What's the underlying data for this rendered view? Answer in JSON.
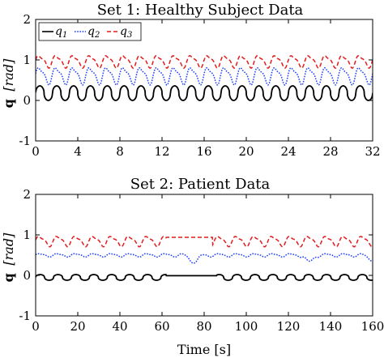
{
  "chart_data": [
    {
      "type": "line",
      "title": "Set 1: Healthy Subject Data",
      "ylabel_bold": "q",
      "ylabel_unit": "[rad]",
      "xlabel": "",
      "xlim": [
        0,
        32
      ],
      "ylim": [
        -1,
        2
      ],
      "xticks": [
        0,
        4,
        8,
        12,
        16,
        20,
        24,
        28,
        32
      ],
      "yticks": [
        -1,
        0,
        1,
        2
      ],
      "grid": false,
      "legend": {
        "placement": "top-left",
        "entries": [
          "q1",
          "q2",
          "q3"
        ]
      },
      "series": [
        {
          "name": "q1",
          "color": "#000000",
          "style": "solid",
          "model": {
            "mean": 0.18,
            "amp": 0.18,
            "period": 1.6,
            "sharp": true
          },
          "samples": [
            [
              0,
              0.35
            ],
            [
              0.8,
              0.0
            ],
            [
              1.6,
              0.35
            ],
            [
              2.4,
              0.0
            ],
            [
              3.2,
              0.35
            ],
            [
              8.8,
              -0.12
            ],
            [
              9.6,
              0.35
            ],
            [
              15.2,
              0.35
            ],
            [
              16.0,
              0.0
            ],
            [
              25.6,
              -0.12
            ],
            [
              32,
              0.0
            ]
          ]
        },
        {
          "name": "q2",
          "color": "#1f3fff",
          "style": "dotted",
          "model": {
            "mean": 0.62,
            "amp": 0.25,
            "period": 1.6,
            "sharp": false
          },
          "samples": [
            [
              0,
              0.75
            ],
            [
              0.8,
              0.95
            ],
            [
              1.6,
              0.4
            ],
            [
              4.0,
              0.9
            ],
            [
              8.0,
              0.35
            ],
            [
              12.0,
              0.85
            ],
            [
              16.0,
              0.6
            ],
            [
              20.0,
              0.9
            ],
            [
              24.0,
              0.3
            ],
            [
              28.0,
              0.55
            ],
            [
              32,
              0.9
            ]
          ]
        },
        {
          "name": "q3",
          "color": "#e41a1c",
          "style": "dashed",
          "model": {
            "mean": 0.97,
            "amp": 0.18,
            "period": 1.6,
            "sharp": false
          },
          "samples": [
            [
              0,
              1.2
            ],
            [
              0.8,
              0.85
            ],
            [
              1.6,
              1.15
            ],
            [
              4.0,
              1.1
            ],
            [
              8.0,
              0.9
            ],
            [
              12.0,
              1.15
            ],
            [
              16.0,
              0.85
            ],
            [
              20.0,
              1.2
            ],
            [
              24.0,
              0.85
            ],
            [
              28.0,
              0.85
            ],
            [
              32,
              1.2
            ]
          ]
        }
      ]
    },
    {
      "type": "line",
      "title": "Set 2: Patient Data",
      "ylabel_bold": "q",
      "ylabel_unit": "[rad]",
      "xlabel": "Time [s]",
      "xlim": [
        0,
        160
      ],
      "ylim": [
        -1,
        2
      ],
      "xticks": [
        0,
        20,
        40,
        60,
        80,
        100,
        120,
        140,
        160
      ],
      "yticks": [
        -1,
        0,
        1,
        2
      ],
      "grid": false,
      "series": [
        {
          "name": "q1",
          "color": "#000000",
          "style": "solid",
          "model": {
            "mean": -0.05,
            "amp": 0.07,
            "period": 8.5,
            "sharp": true,
            "flat": [
              62,
              86
            ]
          },
          "samples": [
            [
              0,
              -0.1
            ],
            [
              5,
              0.02
            ],
            [
              10,
              -0.12
            ],
            [
              20,
              0.02
            ],
            [
              40,
              -0.12
            ],
            [
              60,
              0.02
            ],
            [
              70,
              0.05
            ],
            [
              80,
              0.05
            ],
            [
              100,
              -0.1
            ],
            [
              140,
              0.02
            ],
            [
              160,
              0.05
            ]
          ]
        },
        {
          "name": "q2",
          "color": "#1f3fff",
          "style": "dotted",
          "model": {
            "mean": 0.5,
            "amp": 0.05,
            "period": 8.5,
            "sharp": false,
            "dips": [
              [
                75,
                0.3
              ],
              [
                130,
                0.35
              ],
              [
                160,
                0.35
              ]
            ]
          },
          "samples": [
            [
              0,
              0.5
            ],
            [
              20,
              0.58
            ],
            [
              40,
              0.45
            ],
            [
              60,
              0.55
            ],
            [
              75,
              0.3
            ],
            [
              100,
              0.5
            ],
            [
              130,
              0.35
            ],
            [
              160,
              0.35
            ]
          ]
        },
        {
          "name": "q3",
          "color": "#e41a1c",
          "style": "dashed",
          "model": {
            "mean": 0.85,
            "amp": 0.15,
            "period": 8.5,
            "sharp": false,
            "flat": [
              62,
              84
            ]
          },
          "samples": [
            [
              0,
              1.0
            ],
            [
              5,
              0.75
            ],
            [
              20,
              1.0
            ],
            [
              40,
              0.7
            ],
            [
              60,
              0.95
            ],
            [
              70,
              0.7
            ],
            [
              80,
              0.7
            ],
            [
              100,
              1.0
            ],
            [
              140,
              0.7
            ],
            [
              160,
              0.95
            ]
          ]
        }
      ]
    }
  ]
}
